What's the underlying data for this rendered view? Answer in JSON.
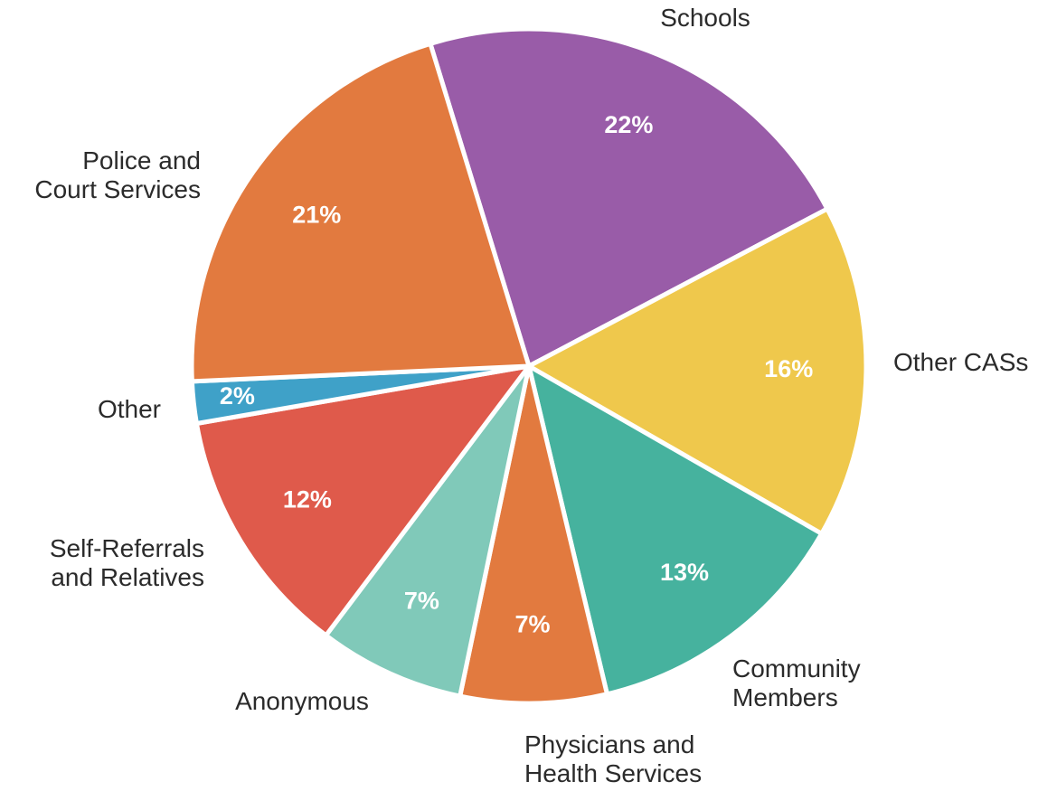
{
  "chart_data": {
    "type": "pie",
    "title": "",
    "slices": [
      {
        "label": [
          "Schools"
        ],
        "value": 22,
        "value_label": "22%",
        "color": "#995ca8"
      },
      {
        "label": [
          "Other CASs"
        ],
        "value": 16,
        "value_label": "16%",
        "color": "#efc84c"
      },
      {
        "label": [
          "Community",
          "Members"
        ],
        "value": 13,
        "value_label": "13%",
        "color": "#46b29e"
      },
      {
        "label": [
          "Physicians and",
          "Health Services"
        ],
        "value": 7,
        "value_label": "7%",
        "color": "#e27a3f"
      },
      {
        "label": [
          "Anonymous"
        ],
        "value": 7,
        "value_label": "7%",
        "color": "#80c9b9"
      },
      {
        "label": [
          "Self-Referrals",
          "and Relatives"
        ],
        "value": 12,
        "value_label": "12%",
        "color": "#df5a4b"
      },
      {
        "label": [
          "Other"
        ],
        "value": 2,
        "value_label": "2%",
        "color": "#3fa1c8"
      },
      {
        "label": [
          "Police and",
          "Court Services"
        ],
        "value": 21,
        "value_label": "21%",
        "color": "#e27a3f"
      }
    ]
  }
}
